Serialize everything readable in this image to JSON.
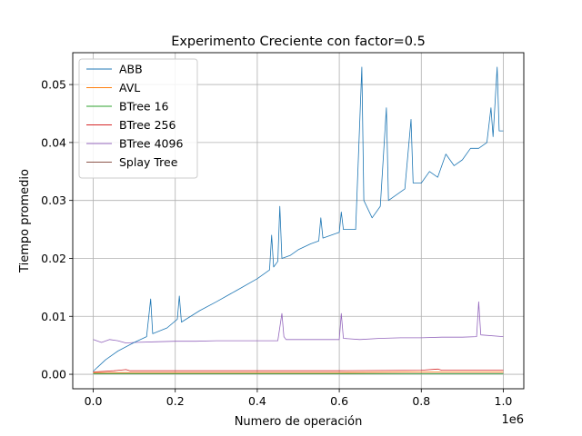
{
  "chart_data": {
    "type": "line",
    "title": "Experimento Creciente con factor=0.5",
    "xlabel": "Numero de operación",
    "ylabel": "Tiempo promedio",
    "x_offset_label": "1e6",
    "xlim": [
      -50000,
      1050000
    ],
    "ylim": [
      -0.0025,
      0.0555
    ],
    "x_ticks": [
      0,
      200000,
      400000,
      600000,
      800000,
      1000000
    ],
    "x_tick_labels": [
      "0.0",
      "0.2",
      "0.4",
      "0.6",
      "0.8",
      "1.0"
    ],
    "y_ticks": [
      0,
      0.01,
      0.02,
      0.03,
      0.04,
      0.05
    ],
    "y_tick_labels": [
      "0.00",
      "0.01",
      "0.02",
      "0.03",
      "0.04",
      "0.05"
    ],
    "grid": true,
    "legend_position": "top-left",
    "series": [
      {
        "name": "ABB",
        "color": "#1f77b4",
        "points": [
          [
            0,
            0.0005
          ],
          [
            10000,
            0.0012
          ],
          [
            30000,
            0.0025
          ],
          [
            60000,
            0.004
          ],
          [
            100000,
            0.0055
          ],
          [
            130000,
            0.0065
          ],
          [
            140000,
            0.013
          ],
          [
            145000,
            0.007
          ],
          [
            180000,
            0.008
          ],
          [
            205000,
            0.0095
          ],
          [
            210000,
            0.0135
          ],
          [
            215000,
            0.009
          ],
          [
            260000,
            0.011
          ],
          [
            300000,
            0.0125
          ],
          [
            350000,
            0.0145
          ],
          [
            400000,
            0.0165
          ],
          [
            430000,
            0.018
          ],
          [
            435000,
            0.024
          ],
          [
            440000,
            0.0185
          ],
          [
            450000,
            0.0195
          ],
          [
            455000,
            0.029
          ],
          [
            460000,
            0.02
          ],
          [
            480000,
            0.0205
          ],
          [
            500000,
            0.0215
          ],
          [
            530000,
            0.0225
          ],
          [
            550000,
            0.023
          ],
          [
            555000,
            0.027
          ],
          [
            560000,
            0.0235
          ],
          [
            600000,
            0.0245
          ],
          [
            605000,
            0.028
          ],
          [
            610000,
            0.025
          ],
          [
            640000,
            0.025
          ],
          [
            655000,
            0.053
          ],
          [
            660000,
            0.03
          ],
          [
            680000,
            0.027
          ],
          [
            700000,
            0.029
          ],
          [
            715000,
            0.046
          ],
          [
            720000,
            0.03
          ],
          [
            740000,
            0.031
          ],
          [
            760000,
            0.032
          ],
          [
            775000,
            0.044
          ],
          [
            780000,
            0.033
          ],
          [
            800000,
            0.033
          ],
          [
            820000,
            0.035
          ],
          [
            840000,
            0.034
          ],
          [
            860000,
            0.038
          ],
          [
            880000,
            0.036
          ],
          [
            900000,
            0.037
          ],
          [
            920000,
            0.039
          ],
          [
            940000,
            0.039
          ],
          [
            960000,
            0.04
          ],
          [
            970000,
            0.046
          ],
          [
            975000,
            0.041
          ],
          [
            985000,
            0.053
          ],
          [
            990000,
            0.042
          ],
          [
            1000000,
            0.042
          ]
        ]
      },
      {
        "name": "AVL",
        "color": "#ff7f0e",
        "points": [
          [
            0,
            0.0003
          ],
          [
            200000,
            0.0003
          ],
          [
            400000,
            0.0003
          ],
          [
            600000,
            0.0003
          ],
          [
            800000,
            0.0004
          ],
          [
            1000000,
            0.0004
          ]
        ]
      },
      {
        "name": "BTree 16",
        "color": "#2ca02c",
        "points": [
          [
            0,
            0.0001
          ],
          [
            200000,
            0.0001
          ],
          [
            400000,
            0.0001
          ],
          [
            600000,
            0.0001
          ],
          [
            800000,
            0.0001
          ],
          [
            1000000,
            0.0001
          ]
        ]
      },
      {
        "name": "BTree 256",
        "color": "#d62728",
        "points": [
          [
            0,
            0.0004
          ],
          [
            50000,
            0.0006
          ],
          [
            80000,
            0.0008
          ],
          [
            90000,
            0.0006
          ],
          [
            200000,
            0.0006
          ],
          [
            400000,
            0.0006
          ],
          [
            600000,
            0.0006
          ],
          [
            800000,
            0.0007
          ],
          [
            840000,
            0.0009
          ],
          [
            850000,
            0.0007
          ],
          [
            1000000,
            0.0007
          ]
        ]
      },
      {
        "name": "BTree 4096",
        "color": "#9467bd",
        "points": [
          [
            0,
            0.006
          ],
          [
            20000,
            0.0055
          ],
          [
            40000,
            0.006
          ],
          [
            60000,
            0.0058
          ],
          [
            80000,
            0.0054
          ],
          [
            100000,
            0.0055
          ],
          [
            150000,
            0.0056
          ],
          [
            200000,
            0.0057
          ],
          [
            250000,
            0.0057
          ],
          [
            300000,
            0.0058
          ],
          [
            350000,
            0.0058
          ],
          [
            400000,
            0.0058
          ],
          [
            450000,
            0.0058
          ],
          [
            460000,
            0.0105
          ],
          [
            465000,
            0.0065
          ],
          [
            470000,
            0.006
          ],
          [
            500000,
            0.006
          ],
          [
            550000,
            0.006
          ],
          [
            600000,
            0.006
          ],
          [
            605000,
            0.0105
          ],
          [
            610000,
            0.0062
          ],
          [
            650000,
            0.006
          ],
          [
            700000,
            0.0062
          ],
          [
            750000,
            0.0063
          ],
          [
            800000,
            0.0063
          ],
          [
            850000,
            0.0064
          ],
          [
            900000,
            0.0064
          ],
          [
            935000,
            0.0065
          ],
          [
            940000,
            0.0125
          ],
          [
            945000,
            0.0068
          ],
          [
            1000000,
            0.0065
          ]
        ]
      },
      {
        "name": "Splay Tree",
        "color": "#8c564b",
        "points": [
          [
            0,
            0.00015
          ],
          [
            200000,
            0.00015
          ],
          [
            400000,
            0.00015
          ],
          [
            600000,
            0.00015
          ],
          [
            800000,
            0.00015
          ],
          [
            1000000,
            0.00015
          ]
        ]
      }
    ]
  }
}
